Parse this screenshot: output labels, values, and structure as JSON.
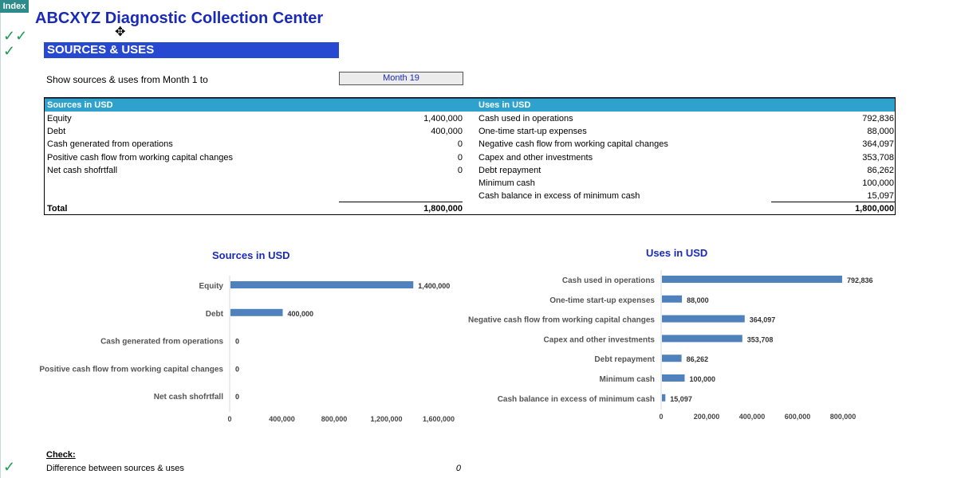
{
  "sheet_tab": "Index",
  "title": "ABCXYZ Diagnostic Collection Center",
  "section": "SOURCES & USES",
  "period": {
    "label": "Show sources & uses from Month 1 to",
    "value": "Month 19"
  },
  "table": {
    "sources_header": "Sources in USD",
    "uses_header": "Uses in USD",
    "sources": [
      {
        "label": "Equity",
        "value": "1,400,000"
      },
      {
        "label": "Debt",
        "value": "400,000"
      },
      {
        "label": "Cash generated from operations",
        "value": "0"
      },
      {
        "label": "Positive cash flow from working capital changes",
        "value": "0"
      },
      {
        "label": "Net cash shofrtfall",
        "value": "0"
      }
    ],
    "uses": [
      {
        "label": "Cash used in operations",
        "value": "792,836"
      },
      {
        "label": "One-time start-up expenses",
        "value": "88,000"
      },
      {
        "label": "Negative cash flow from working capital changes",
        "value": "364,097"
      },
      {
        "label": "Capex and other investments",
        "value": "353,708"
      },
      {
        "label": "Debt repayment",
        "value": "86,262"
      },
      {
        "label": "Minimum cash",
        "value": "100,000"
      },
      {
        "label": "Cash balance in excess of minimum cash",
        "value": "15,097"
      }
    ],
    "total_label": "Total",
    "sources_total": "1,800,000",
    "uses_total": "1,800,000"
  },
  "chart_data": [
    {
      "type": "bar",
      "orientation": "horizontal",
      "title": "Sources in USD",
      "categories": [
        "Equity",
        "Debt",
        "Cash generated from operations",
        "Positive cash flow from working capital changes",
        "Net cash shofrtfall"
      ],
      "values": [
        1400000,
        400000,
        0,
        0,
        0
      ],
      "value_labels": [
        "1,400,000",
        "400,000",
        "0",
        "0",
        "0"
      ],
      "xlim": [
        0,
        1600000
      ],
      "ticks": [
        0,
        400000,
        800000,
        1200000,
        1600000
      ],
      "tick_labels": [
        "0",
        "400,000",
        "800,000",
        "1,200,000",
        "1,600,000"
      ],
      "bar_color": "#4f81bd",
      "grid": false
    },
    {
      "type": "bar",
      "orientation": "horizontal",
      "title": "Uses in USD",
      "categories": [
        "Cash used in operations",
        "One-time start-up expenses",
        "Negative cash flow from working capital changes",
        "Capex and other investments",
        "Debt repayment",
        "Minimum cash",
        "Cash balance in excess of minimum cash"
      ],
      "values": [
        792836,
        88000,
        364097,
        353708,
        86262,
        100000,
        15097
      ],
      "value_labels": [
        "792,836",
        "88,000",
        "364,097",
        "353,708",
        "86,262",
        "100,000",
        "15,097"
      ],
      "xlim": [
        0,
        800000
      ],
      "ticks": [
        0,
        200000,
        400000,
        600000,
        800000
      ],
      "tick_labels": [
        "0",
        "200,000",
        "400,000",
        "600,000",
        "800,000"
      ],
      "bar_color": "#4f81bd",
      "grid": false
    }
  ],
  "check": {
    "title": "Check:",
    "label": "Difference between sources & uses",
    "value": "0"
  },
  "colors": {
    "accent": "#2748d0",
    "table_header": "#2ea2cc",
    "title": "#1a2ab8",
    "check": "#1e9a55"
  }
}
